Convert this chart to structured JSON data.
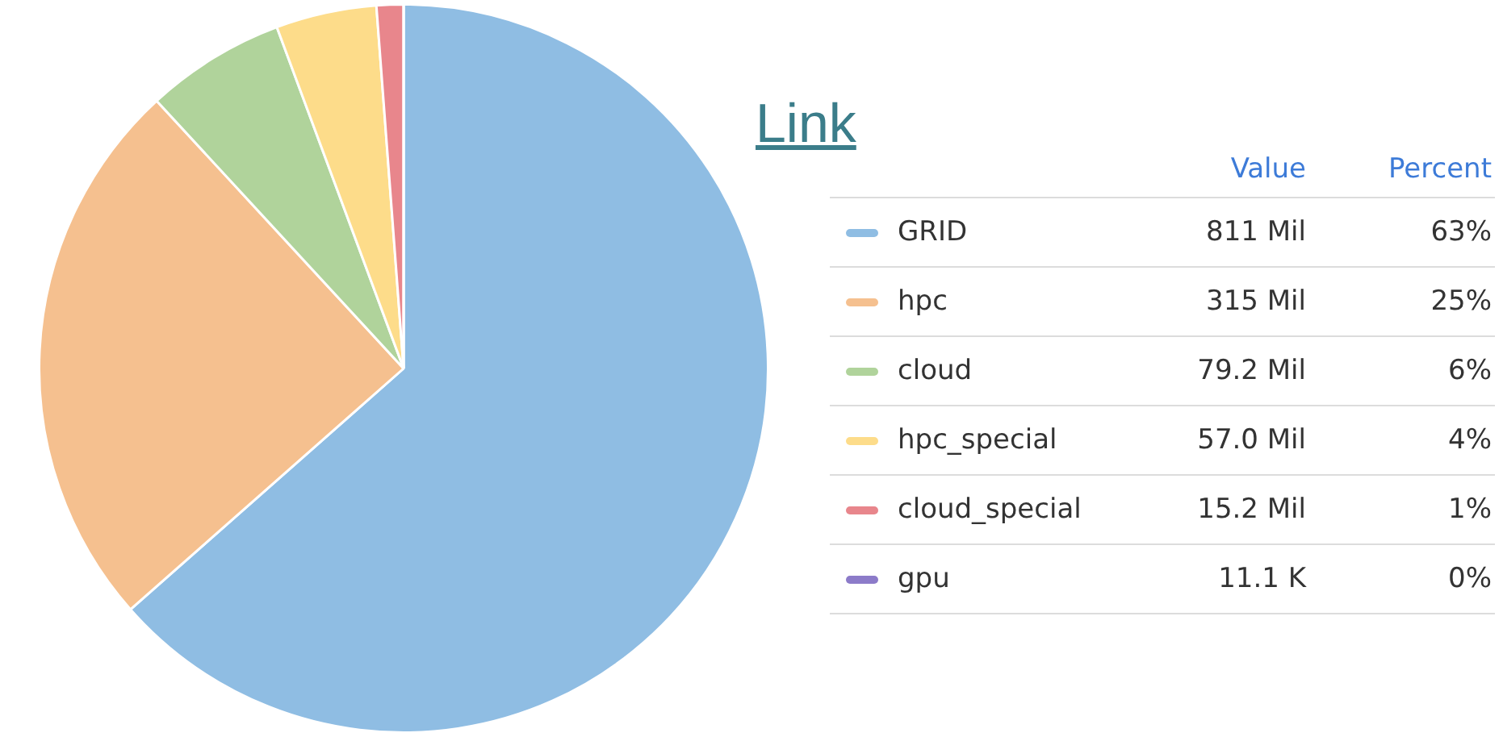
{
  "chart_data": {
    "type": "pie",
    "legend": "right",
    "categories": [
      "GRID",
      "hpc",
      "cloud",
      "hpc_special",
      "cloud_special",
      "gpu"
    ],
    "values": [
      811,
      315,
      79.2,
      57.0,
      15.2,
      0.0111
    ],
    "value_labels": [
      "811 Mil",
      "315 Mil",
      "79.2 Mil",
      "57.0 Mil",
      "15.2 Mil",
      "11.1 K"
    ],
    "colors": [
      "#8fbde3",
      "#f5c08f",
      "#b0d39b",
      "#fddc8a",
      "#e8868c",
      "#8c7bc9"
    ],
    "annotations": [
      "Link",
      "Value",
      "Percent",
      "63%",
      "25%",
      "6%",
      "4%",
      "1%",
      "0%"
    ]
  }
}
